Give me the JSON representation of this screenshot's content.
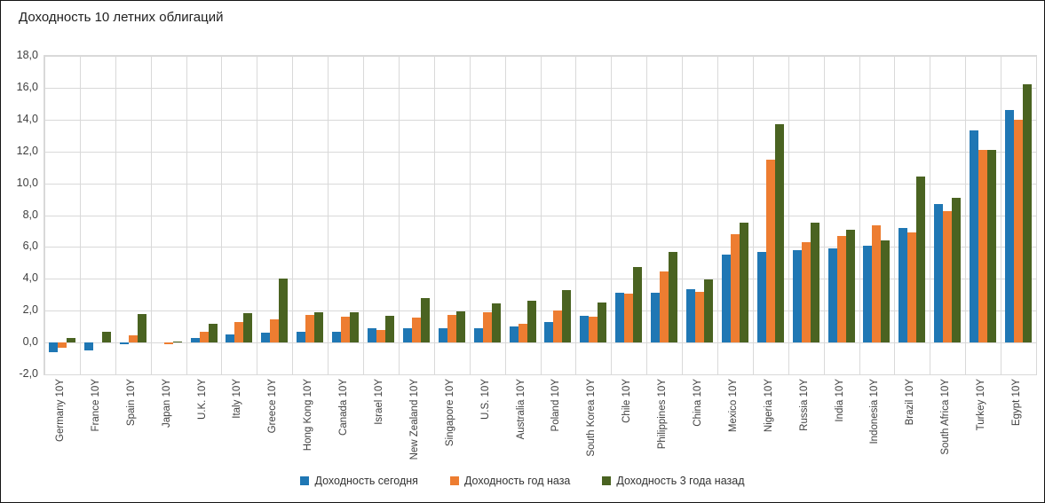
{
  "title": "Доходность 10 летних облигаций",
  "chart_data": {
    "type": "bar",
    "title": "Доходность 10 летних облигаций",
    "categories": [
      "Germany 10Y",
      "France 10Y",
      "Spain 10Y",
      "Japan 10Y",
      "U.K. 10Y",
      "Italy 10Y",
      "Greece 10Y",
      "Hong Kong 10Y",
      "Canada 10Y",
      "Israel 10Y",
      "New Zealand 10Y",
      "Singapore 10Y",
      "U.S. 10Y",
      "Australia 10Y",
      "Poland 10Y",
      "South Korea 10Y",
      "Chile 10Y",
      "Philippines 10Y",
      "China 10Y",
      "Mexico 10Y",
      "Nigeria 10Y",
      "Russia 10Y",
      "India 10Y",
      "Indonesia 10Y",
      "Brazil 10Y",
      "South Africa 10Y",
      "Turkey 10Y",
      "Egypt 10Y"
    ],
    "series": [
      {
        "name": "Доходность сегодня",
        "color": "#1F77B4",
        "values": [
          -0.6,
          -0.5,
          -0.1,
          0.0,
          0.3,
          0.5,
          0.6,
          0.65,
          0.7,
          0.9,
          0.9,
          0.9,
          0.9,
          1.0,
          1.3,
          1.7,
          3.1,
          3.1,
          3.35,
          5.5,
          5.7,
          5.8,
          5.9,
          6.1,
          7.2,
          8.7,
          13.3,
          14.6
        ]
      },
      {
        "name": "Доходность год наза",
        "color": "#ED7D31",
        "values": [
          -0.35,
          0.0,
          0.45,
          -0.1,
          0.7,
          1.3,
          1.45,
          1.75,
          1.6,
          0.8,
          1.55,
          1.75,
          1.9,
          1.2,
          2.0,
          1.6,
          3.05,
          4.45,
          3.2,
          6.8,
          11.5,
          6.3,
          6.7,
          7.35,
          6.9,
          8.25,
          12.1,
          14.0
        ]
      },
      {
        "name": "Доходность 3 года назад",
        "color": "#4A6321",
        "values": [
          0.3,
          0.65,
          1.8,
          0.05,
          1.15,
          1.85,
          4.0,
          1.9,
          1.9,
          1.65,
          2.8,
          1.95,
          2.45,
          2.65,
          3.3,
          2.5,
          4.75,
          5.7,
          3.95,
          7.5,
          13.7,
          7.55,
          7.1,
          6.4,
          10.4,
          9.1,
          12.1,
          16.2
        ]
      }
    ],
    "ylim": [
      -2,
      18
    ],
    "y_step": 2,
    "y_ticks": [
      "18,0",
      "16,0",
      "14,0",
      "12,0",
      "10,0",
      "8,0",
      "6,0",
      "4,0",
      "2,0",
      "0,0",
      "-2,0"
    ],
    "xlabel": "",
    "ylabel": "",
    "grid": true,
    "legend_position": "bottom",
    "gridline_color": "#D9D9D9",
    "text_color": "#404040"
  }
}
